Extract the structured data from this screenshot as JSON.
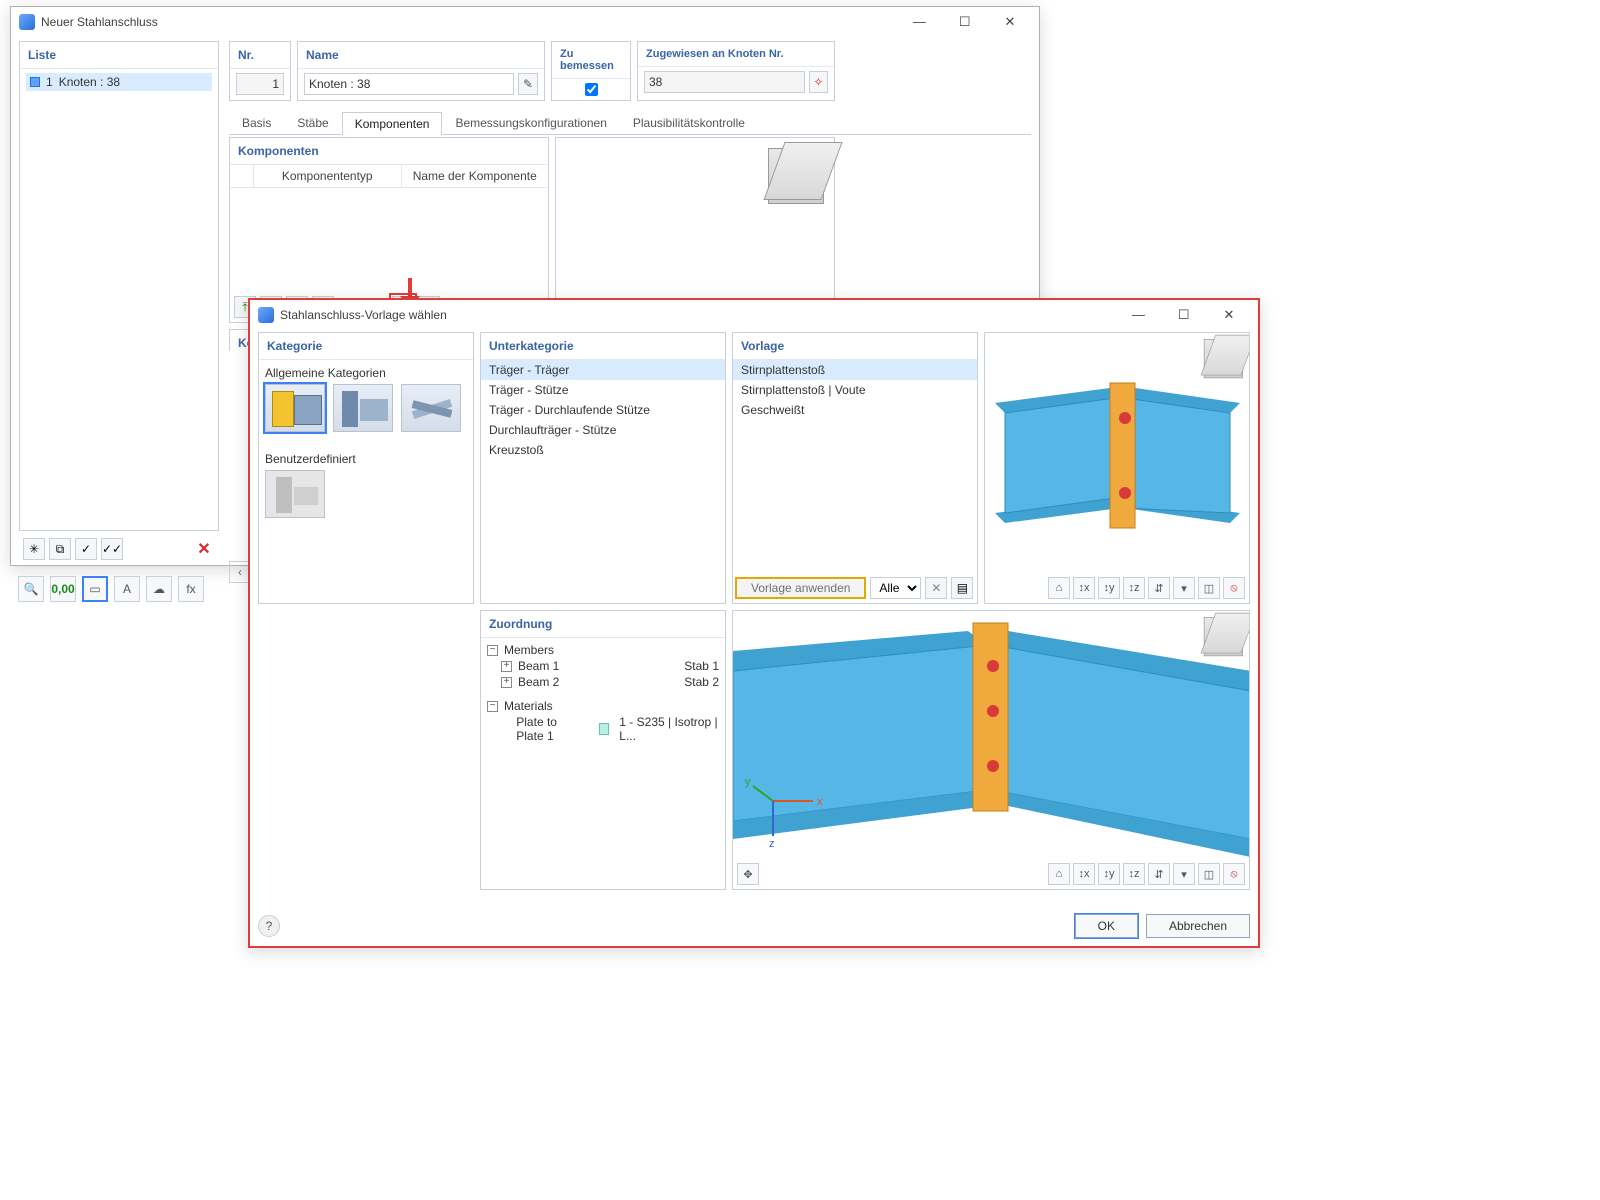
{
  "mainWindow": {
    "title": "Neuer Stahlanschluss",
    "list": {
      "header": "Liste",
      "rows": [
        {
          "num": "1",
          "label": "Knoten : 38"
        }
      ]
    },
    "nr": {
      "header": "Nr.",
      "value": "1"
    },
    "name": {
      "header": "Name",
      "value": "Knoten : 38"
    },
    "zu": {
      "header": "Zu bemessen",
      "checked": true
    },
    "node": {
      "header": "Zugewiesen an Knoten Nr.",
      "value": "38"
    },
    "tabs": [
      "Basis",
      "Stäbe",
      "Komponenten",
      "Bemessungskonfigurationen",
      "Plausibilitätskontrolle"
    ],
    "activeTab": 2,
    "komponenten": {
      "header": "Komponenten",
      "cols": [
        "Komponententyp",
        "Name der Komponente"
      ]
    },
    "kompSettings": "Komponenteneinstellungen"
  },
  "dialog": {
    "title": "Stahlanschluss-Vorlage wählen",
    "kategorie": {
      "header": "Kategorie",
      "general": "Allgemeine Kategorien",
      "userdef": "Benutzerdefiniert"
    },
    "unterkat": {
      "header": "Unterkategorie",
      "items": [
        "Träger - Träger",
        "Träger - Stütze",
        "Träger - Durchlaufende Stütze",
        "Durchlaufträger - Stütze",
        "Kreuzstoß"
      ],
      "selected": 0
    },
    "vorlage": {
      "header": "Vorlage",
      "items": [
        "Stirnplattenstoß",
        "Stirnplattenstoß | Voute",
        "Geschweißt"
      ],
      "selected": 0,
      "applyLabel": "Vorlage anwenden",
      "filter": {
        "value": "Alle"
      }
    },
    "zuordnung": {
      "header": "Zuordnung",
      "members": {
        "label": "Members",
        "rows": [
          {
            "name": "Beam 1",
            "value": "Stab 1"
          },
          {
            "name": "Beam 2",
            "value": "Stab 2"
          }
        ]
      },
      "materials": {
        "label": "Materials",
        "rows": [
          {
            "name": "Plate to Plate 1",
            "value": "1 - S235 | Isotrop | L..."
          }
        ]
      }
    },
    "axes": {
      "x": "x",
      "y": "y",
      "z": "z"
    },
    "buttons": {
      "ok": "OK",
      "cancel": "Abbrechen"
    }
  },
  "colors": {
    "beam": "#56b6e6",
    "beamDark": "#2a8fbd",
    "flange": "#3fa2d1",
    "plate": "#f0a93c",
    "plateEdge": "#c77d16",
    "bolt": "#d83a3a"
  }
}
